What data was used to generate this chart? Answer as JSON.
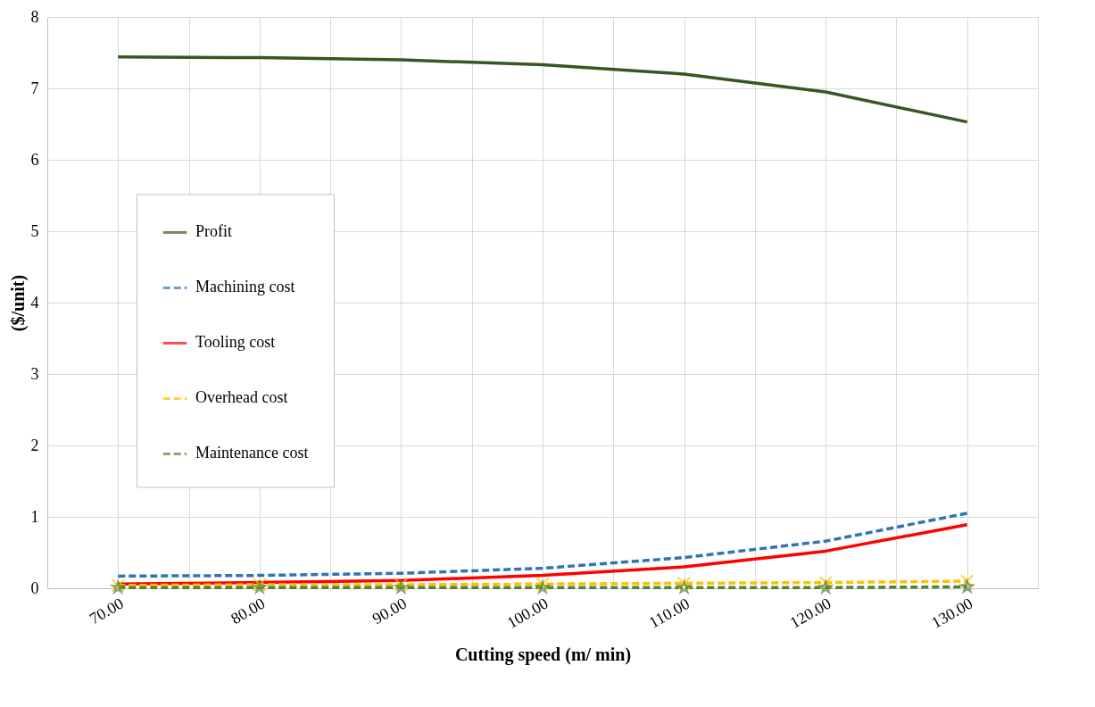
{
  "chart_data": {
    "type": "line",
    "xlabel": "Cutting speed (m/ min)",
    "ylabel": "($/unit)",
    "x": [
      70,
      80,
      90,
      100,
      110,
      120,
      130
    ],
    "xlim": [
      65,
      135
    ],
    "xticks": [
      {
        "value": 70,
        "label": "70.00"
      },
      {
        "value": 75,
        "label": null
      },
      {
        "value": 80,
        "label": "80.00"
      },
      {
        "value": 85,
        "label": null
      },
      {
        "value": 90,
        "label": "90.00"
      },
      {
        "value": 95,
        "label": null
      },
      {
        "value": 100,
        "label": "100.00"
      },
      {
        "value": 105,
        "label": null
      },
      {
        "value": 110,
        "label": "110.00"
      },
      {
        "value": 115,
        "label": null
      },
      {
        "value": 120,
        "label": "120.00"
      },
      {
        "value": 125,
        "label": null
      },
      {
        "value": 130,
        "label": "130.00"
      },
      {
        "value": 135,
        "label": null
      }
    ],
    "ylim": [
      0,
      8
    ],
    "yticks": [
      0,
      1,
      2,
      3,
      4,
      5,
      6,
      7,
      8
    ],
    "grid": true,
    "legend": "left",
    "series": [
      {
        "name": "Profit",
        "color": "#375623",
        "line_style": "solid",
        "marker": "none",
        "values": [
          7.44,
          7.43,
          7.4,
          7.33,
          7.2,
          6.95,
          6.53
        ]
      },
      {
        "name": "Machining cost",
        "color": "#2e75b6",
        "line_style": "dashed",
        "marker": "none",
        "values": [
          0.17,
          0.18,
          0.21,
          0.28,
          0.43,
          0.66,
          1.05
        ]
      },
      {
        "name": "Tooling cost",
        "color": "#ff0000",
        "line_style": "solid",
        "marker": "none",
        "values": [
          0.06,
          0.08,
          0.11,
          0.18,
          0.3,
          0.52,
          0.89
        ]
      },
      {
        "name": "Overhead cost",
        "color": "#ffc000",
        "line_style": "dashed",
        "marker": "cross",
        "values": [
          0.04,
          0.05,
          0.05,
          0.06,
          0.07,
          0.08,
          0.1
        ]
      },
      {
        "name": "Maintenance cost",
        "color": "#548235",
        "line_style": "dashed",
        "marker": "star",
        "values": [
          0.01,
          0.01,
          0.01,
          0.01,
          0.01,
          0.01,
          0.02
        ]
      }
    ]
  }
}
